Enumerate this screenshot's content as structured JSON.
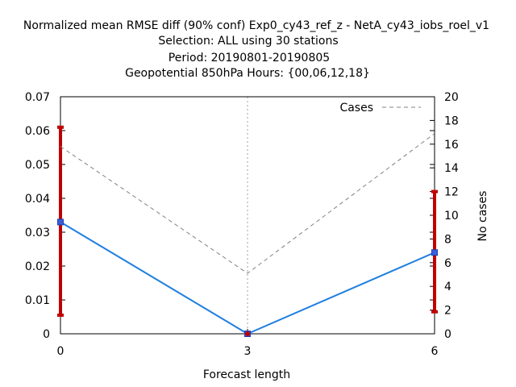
{
  "chart_data": {
    "type": "line",
    "title_lines": [
      "Normalized mean RMSE diff (90% conf) Exp0_cy43_ref_z - NetA_cy43_iobs_roel_v1",
      "Selection: ALL using    30 stations",
      "Period: 20190801-20190805",
      "Geopotential 850hPa   Hours: {00,06,12,18}"
    ],
    "xlabel": "Forecast length",
    "ylabel": "",
    "y2label": "No cases",
    "x_ticks": [
      "0",
      "3",
      "6"
    ],
    "xlim": [
      0,
      6
    ],
    "y_ticks": [
      "0",
      "0.01",
      "0.02",
      "0.03",
      "0.04",
      "0.05",
      "0.06",
      "0.07"
    ],
    "ylim": [
      0,
      0.07
    ],
    "y2_ticks": [
      "0",
      "2",
      "4",
      "6",
      "8",
      "10",
      "12",
      "14",
      "16",
      "18",
      "20"
    ],
    "y2lim": [
      0,
      20
    ],
    "grid": "dashed at x ticks",
    "legend": {
      "placement": "top-right",
      "entries": [
        "Cases"
      ]
    },
    "series": [
      {
        "name": "",
        "axis": "left",
        "color": "#1f7fdf",
        "x": [
          0,
          3,
          6
        ],
        "y": [
          0.033,
          0.0,
          0.024
        ],
        "ci_low": [
          0.0055,
          0.0,
          0.0065
        ],
        "ci_high": [
          0.061,
          0.0,
          0.042
        ],
        "ci_color": "#c00000"
      },
      {
        "name": "Cases",
        "axis": "right",
        "color": "#808080",
        "dashed": true,
        "x": [
          0,
          3,
          6
        ],
        "y": [
          15.8,
          5.1,
          16.9
        ]
      }
    ]
  }
}
